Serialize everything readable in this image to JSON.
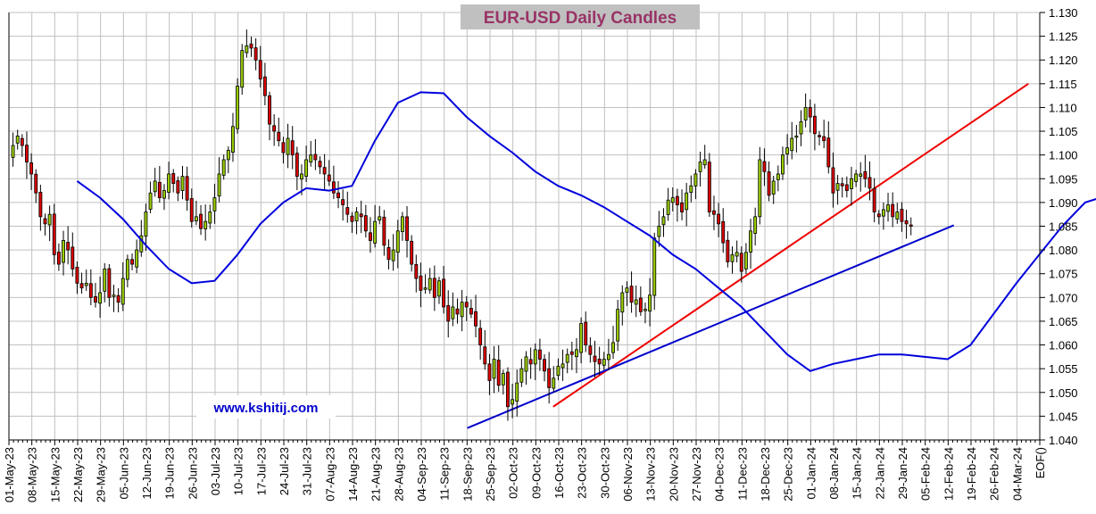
{
  "chart_data": {
    "type": "candlestick",
    "title": "EUR-USD Daily  Candles",
    "watermark": "www.kshitij.com",
    "y_ticks": [
      "1.040",
      "1.045",
      "1.050",
      "1.055",
      "1.060",
      "1.065",
      "1.070",
      "1.075",
      "1.080",
      "1.085",
      "1.090",
      "1.095",
      "1.100",
      "1.105",
      "1.110",
      "1.115",
      "1.120",
      "1.125",
      "1.130"
    ],
    "ylim": [
      1.04,
      1.13
    ],
    "x_ticks": [
      "01-May-23",
      "08-May-23",
      "15-May-23",
      "22-May-23",
      "29-May-23",
      "05-Jun-23",
      "12-Jun-23",
      "19-Jun-23",
      "26-Jun-23",
      "03-Jul-23",
      "10-Jul-23",
      "17-Jul-23",
      "24-Jul-23",
      "31-Jul-23",
      "07-Aug-23",
      "14-Aug-23",
      "21-Aug-23",
      "28-Aug-23",
      "04-Sep-23",
      "11-Sep-23",
      "18-Sep-23",
      "25-Sep-23",
      "02-Oct-23",
      "09-Oct-23",
      "16-Oct-23",
      "23-Oct-23",
      "30-Oct-23",
      "06-Nov-23",
      "13-Nov-23",
      "20-Nov-23",
      "27-Nov-23",
      "04-Dec-23",
      "11-Dec-23",
      "18-Dec-23",
      "25-Dec-23",
      "01-Jan-24",
      "08-Jan-24",
      "15-Jan-24",
      "22-Jan-24",
      "29-Jan-24",
      "05-Feb-24",
      "12-Feb-24",
      "19-Feb-24",
      "26-Feb-24",
      "04-Mar-24",
      "EOF()"
    ],
    "colors": {
      "up": "#99cc00",
      "down": "#dd0000",
      "ma": "#0000dd",
      "trend_red": "#ee0000",
      "trend_blue": "#0000cc",
      "grid": "#c0c0c0",
      "title_bg": "#c0c0c0",
      "title_text": "#993366",
      "watermark": "#0000cc"
    },
    "closes": [
      1.102,
      1.104,
      1.102,
      1.0985,
      1.096,
      1.092,
      1.087,
      1.0855,
      1.0875,
      1.079,
      1.077,
      1.082,
      1.08,
      1.076,
      1.073,
      1.072,
      1.073,
      1.07,
      1.069,
      1.071,
      1.076,
      1.07,
      1.0705,
      1.069,
      1.074,
      1.078,
      1.077,
      1.08,
      1.083,
      1.088,
      1.092,
      1.0945,
      1.091,
      1.0925,
      1.096,
      1.094,
      1.092,
      1.0955,
      1.0905,
      1.086,
      1.087,
      1.0845,
      1.086,
      1.088,
      1.091,
      1.096,
      1.099,
      1.101,
      1.106,
      1.1145,
      1.122,
      1.123,
      1.1225,
      1.12,
      1.116,
      1.1125,
      1.1065,
      1.105,
      1.103,
      1.1005,
      1.1035,
      1.1,
      1.0955,
      1.096,
      1.099,
      1.1,
      1.099,
      1.0975,
      1.096,
      1.0945,
      1.092,
      1.091,
      1.0895,
      1.0875,
      1.086,
      1.088,
      1.087,
      1.084,
      1.082,
      1.086,
      1.087,
      1.081,
      1.078,
      1.08,
      1.084,
      1.087,
      1.082,
      1.077,
      1.074,
      1.0715,
      1.072,
      1.074,
      1.07,
      1.0735,
      1.068,
      1.065,
      1.068,
      1.0665,
      1.069,
      1.068,
      1.0665,
      1.064,
      1.06,
      1.056,
      1.0525,
      1.057,
      1.0515,
      1.054,
      1.047,
      1.0485,
      1.052,
      1.055,
      1.0575,
      1.056,
      1.059,
      1.057,
      1.0545,
      1.051,
      1.053,
      1.0555,
      1.056,
      1.058,
      1.058,
      1.059,
      1.0645,
      1.06,
      1.058,
      1.0565,
      1.056,
      1.057,
      1.058,
      1.0605,
      1.0675,
      1.071,
      1.072,
      1.069,
      1.0695,
      1.067,
      1.0675,
      1.0705,
      1.0825,
      1.085,
      1.087,
      1.0905,
      1.091,
      1.0895,
      1.088,
      1.092,
      1.0935,
      1.096,
      1.0985,
      1.099,
      1.088,
      1.0875,
      1.0855,
      1.0815,
      1.0775,
      1.079,
      1.0795,
      1.0755,
      1.0795,
      1.084,
      1.087,
      1.099,
      1.0965,
      1.0915,
      1.0945,
      1.096,
      1.1,
      1.1015,
      1.1035,
      1.104,
      1.107,
      1.11,
      1.108,
      1.1045,
      1.104,
      1.103,
      1.0975,
      1.092,
      1.094,
      1.0935,
      1.0925,
      1.095,
      1.096,
      1.096,
      1.095,
      1.093,
      1.088,
      1.087,
      1.0885,
      1.0895,
      1.087,
      1.088,
      1.086,
      1.0855,
      1.085
    ],
    "moving_average": [
      [
        0,
        1.0945
      ],
      [
        5,
        1.091
      ],
      [
        10,
        1.0865
      ],
      [
        15,
        1.081
      ],
      [
        20,
        1.076
      ],
      [
        25,
        1.073
      ],
      [
        30,
        1.0735
      ],
      [
        35,
        1.079
      ],
      [
        40,
        1.0855
      ],
      [
        45,
        1.09
      ],
      [
        50,
        1.093
      ],
      [
        55,
        1.0925
      ],
      [
        60,
        1.0935
      ],
      [
        65,
        1.103
      ],
      [
        70,
        1.111
      ],
      [
        75,
        1.1132
      ],
      [
        80,
        1.113
      ],
      [
        85,
        1.108
      ],
      [
        90,
        1.104
      ],
      [
        95,
        1.1005
      ],
      [
        100,
        1.0965
      ],
      [
        105,
        1.0935
      ],
      [
        110,
        1.0915
      ],
      [
        115,
        1.089
      ],
      [
        120,
        1.086
      ],
      [
        125,
        1.083
      ],
      [
        130,
        1.079
      ],
      [
        135,
        1.076
      ],
      [
        140,
        1.072
      ],
      [
        145,
        1.068
      ],
      [
        150,
        1.063
      ],
      [
        155,
        1.058
      ],
      [
        160,
        1.0545
      ],
      [
        165,
        1.056
      ],
      [
        170,
        1.057
      ],
      [
        175,
        1.058
      ],
      [
        180,
        1.058
      ],
      [
        185,
        1.0575
      ],
      [
        190,
        1.057
      ],
      [
        195,
        1.06
      ],
      [
        200,
        1.0665
      ],
      [
        205,
        1.073
      ],
      [
        210,
        1.079
      ],
      [
        215,
        1.085
      ],
      [
        220,
        1.09
      ],
      [
        225,
        1.0915
      ],
      [
        230,
        1.091
      ],
      [
        235,
        1.089
      ],
      [
        240,
        1.086
      ],
      [
        245,
        1.085
      ],
      [
        250,
        1.0865
      ],
      [
        255,
        1.0915
      ],
      [
        260,
        1.099
      ],
      [
        265,
        1.1005
      ],
      [
        270,
        1.1005
      ],
      [
        275,
        1.099
      ],
      [
        280,
        1.095
      ],
      [
        285,
        1.092
      ],
      [
        290,
        1.088
      ],
      [
        295,
        1.087
      ],
      [
        300,
        1.0855
      ],
      [
        305,
        1.0848
      ]
    ],
    "trendlines": [
      {
        "color": "trend_red",
        "points": [
          [
            0.528,
            1.047
          ],
          [
            0.989,
            1.115
          ]
        ]
      },
      {
        "color": "trend_blue",
        "points": [
          [
            0.4447,
            1.0425
          ],
          [
            0.9166,
            1.0852
          ]
        ]
      }
    ]
  }
}
